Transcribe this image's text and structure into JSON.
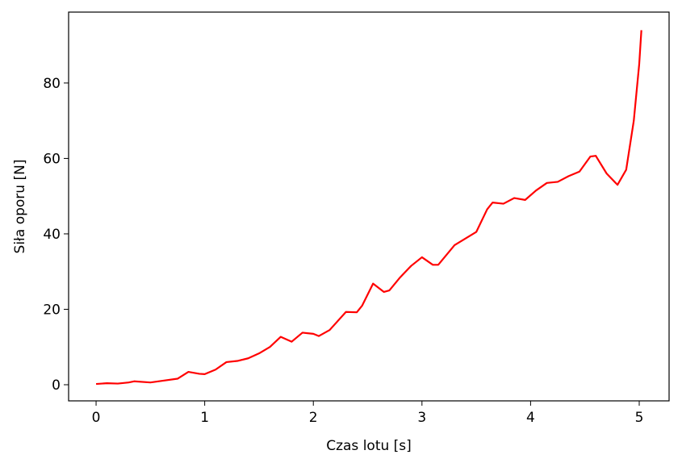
{
  "chart_data": {
    "type": "line",
    "xlabel": "Czas lotu [s]",
    "ylabel": "Siła oporu [N]",
    "x": [
      0,
      0.1,
      0.2,
      0.3,
      0.35,
      0.5,
      0.6,
      0.75,
      0.85,
      0.95,
      1.0,
      1.1,
      1.2,
      1.3,
      1.4,
      1.5,
      1.6,
      1.7,
      1.8,
      1.9,
      2.0,
      2.05,
      2.15,
      2.3,
      2.4,
      2.45,
      2.55,
      2.65,
      2.7,
      2.8,
      2.9,
      3.0,
      3.1,
      3.15,
      3.3,
      3.5,
      3.6,
      3.65,
      3.75,
      3.85,
      3.95,
      4.05,
      4.15,
      4.25,
      4.35,
      4.45,
      4.55,
      4.6,
      4.7,
      4.8,
      4.88,
      4.95,
      5.0,
      5.02
    ],
    "series": [
      {
        "color": "#ff0000",
        "values": [
          0.2,
          0.4,
          0.3,
          0.6,
          0.9,
          0.6,
          1.0,
          1.6,
          3.4,
          2.9,
          2.8,
          4.0,
          6.0,
          6.3,
          7.0,
          8.3,
          10.0,
          12.7,
          11.4,
          13.8,
          13.5,
          12.9,
          14.5,
          19.3,
          19.2,
          21.0,
          26.8,
          24.6,
          25.0,
          28.5,
          31.5,
          33.8,
          31.8,
          31.8,
          37.0,
          40.5,
          46.5,
          48.3,
          48.0,
          49.5,
          49.0,
          51.5,
          53.5,
          53.8,
          55.3,
          56.5,
          60.5,
          60.7,
          56.0,
          53.0,
          57,
          70,
          85,
          94
        ]
      }
    ],
    "xlim": [
      -0.253,
      5.275
    ],
    "ylim": [
      -4.28,
      98.8
    ],
    "xticks": [
      0,
      1,
      2,
      3,
      4,
      5
    ],
    "yticks": [
      0,
      20,
      40,
      60,
      80
    ]
  }
}
